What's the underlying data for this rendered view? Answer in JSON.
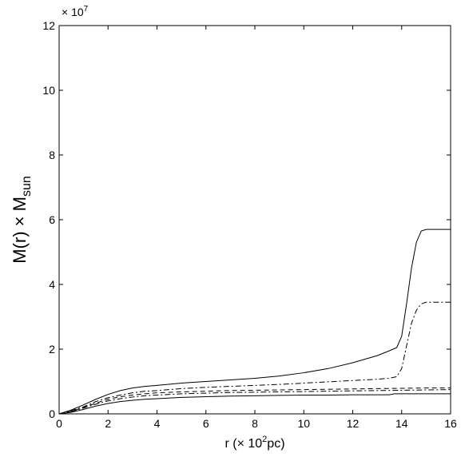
{
  "chart_data": {
    "type": "line",
    "xlabel_parts": [
      "r (",
      "×",
      " 10",
      "2",
      "pc)"
    ],
    "ylabel_parts": [
      "M(r) ",
      "×",
      " M",
      "sun"
    ],
    "y_multiplier": {
      "base": "× 10",
      "exp": "7"
    },
    "xlim": [
      0,
      16
    ],
    "ylim": [
      0,
      12
    ],
    "x_ticks": [
      0,
      2,
      4,
      6,
      8,
      10,
      12,
      14,
      16
    ],
    "y_ticks": [
      0,
      2,
      4,
      6,
      8,
      10,
      12
    ],
    "grid": false,
    "series": [
      {
        "style": "solid",
        "x": [
          0,
          0.5,
          1,
          1.5,
          2,
          2.5,
          3,
          3.5,
          4,
          5,
          6,
          7,
          8,
          9,
          10,
          11,
          12,
          13,
          13.5,
          13.8,
          14,
          14.2,
          14.4,
          14.6,
          14.8,
          15,
          15.5,
          16
        ],
        "y": [
          0,
          0.12,
          0.28,
          0.45,
          0.6,
          0.72,
          0.8,
          0.85,
          0.88,
          0.95,
          1.0,
          1.05,
          1.1,
          1.17,
          1.27,
          1.4,
          1.58,
          1.8,
          1.95,
          2.05,
          2.4,
          3.4,
          4.5,
          5.3,
          5.65,
          5.7,
          5.7,
          5.7
        ]
      },
      {
        "style": "dashdot",
        "x": [
          0,
          0.5,
          1,
          1.5,
          2,
          2.5,
          3,
          3.5,
          4,
          5,
          6,
          7,
          8,
          9,
          10,
          11,
          12,
          13,
          13.5,
          13.8,
          14,
          14.2,
          14.4,
          14.6,
          14.8,
          15,
          15.5,
          16
        ],
        "y": [
          0,
          0.1,
          0.22,
          0.38,
          0.5,
          0.58,
          0.65,
          0.7,
          0.72,
          0.78,
          0.82,
          0.85,
          0.88,
          0.91,
          0.95,
          0.99,
          1.03,
          1.07,
          1.1,
          1.15,
          1.4,
          2.1,
          2.8,
          3.2,
          3.4,
          3.45,
          3.45,
          3.45
        ]
      },
      {
        "style": "dashed",
        "x": [
          0,
          0.5,
          1,
          1.5,
          2,
          2.5,
          3,
          3.5,
          4,
          5,
          6,
          7,
          8,
          9,
          10,
          11,
          12,
          13,
          14,
          15,
          16
        ],
        "y": [
          0,
          0.08,
          0.2,
          0.33,
          0.45,
          0.53,
          0.58,
          0.62,
          0.65,
          0.68,
          0.7,
          0.72,
          0.73,
          0.74,
          0.75,
          0.76,
          0.77,
          0.78,
          0.79,
          0.8,
          0.8
        ]
      },
      {
        "style": "dashdot",
        "x": [
          0,
          0.5,
          1,
          1.5,
          2,
          2.5,
          3,
          3.5,
          4,
          5,
          6,
          7,
          8,
          9,
          10,
          11,
          12,
          13,
          14,
          15,
          16
        ],
        "y": [
          0,
          0.07,
          0.18,
          0.3,
          0.4,
          0.47,
          0.52,
          0.56,
          0.58,
          0.62,
          0.64,
          0.66,
          0.67,
          0.68,
          0.69,
          0.7,
          0.71,
          0.72,
          0.73,
          0.74,
          0.75
        ]
      },
      {
        "style": "solid",
        "x": [
          0,
          0.5,
          1,
          1.5,
          2,
          2.5,
          3,
          3.5,
          4,
          5,
          6,
          7,
          8,
          9,
          10,
          11,
          12,
          13,
          13.5,
          13.7,
          14,
          15,
          16
        ],
        "y": [
          0,
          0.05,
          0.14,
          0.24,
          0.32,
          0.38,
          0.42,
          0.45,
          0.47,
          0.51,
          0.53,
          0.55,
          0.56,
          0.57,
          0.58,
          0.58,
          0.59,
          0.59,
          0.59,
          0.62,
          0.62,
          0.62,
          0.62
        ]
      }
    ]
  }
}
